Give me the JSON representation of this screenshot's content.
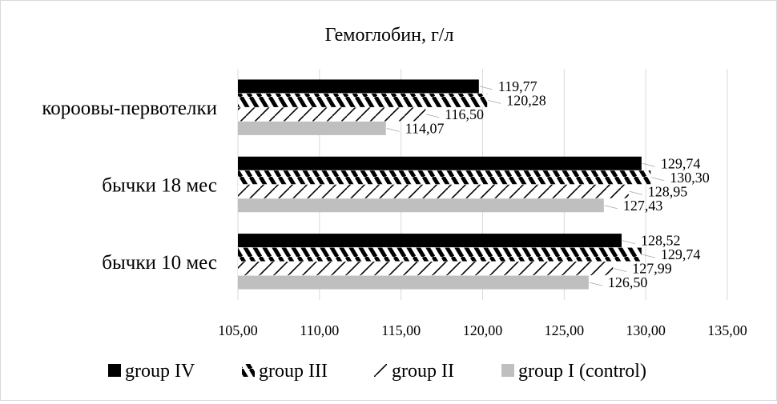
{
  "chart_data": {
    "type": "bar",
    "orientation": "horizontal",
    "title": "Гемоглобин, г/л",
    "categories": [
      "короовы-первотелки",
      "бычки 18 мес",
      "бычки 10 мес"
    ],
    "series": [
      {
        "name": "group IV",
        "values": [
          119.77,
          129.74,
          128.52
        ],
        "labels": [
          "119,77",
          "129,74",
          "128,52"
        ],
        "pattern": "solid-black"
      },
      {
        "name": "group III",
        "values": [
          120.28,
          130.3,
          129.74
        ],
        "labels": [
          "120,28",
          "130,30",
          "129,74"
        ],
        "pattern": "dense-diagonal"
      },
      {
        "name": "group II",
        "values": [
          116.5,
          128.95,
          127.99
        ],
        "labels": [
          "116,50",
          "128,95",
          "127,99"
        ],
        "pattern": "sparse-diagonal"
      },
      {
        "name": "group I (control)",
        "values": [
          114.07,
          127.43,
          126.5
        ],
        "labels": [
          "114,07",
          "127,43",
          "126,50"
        ],
        "pattern": "solid-gray"
      }
    ],
    "xlim": [
      105,
      135
    ],
    "xticks": [
      105,
      110,
      115,
      120,
      125,
      130,
      135
    ],
    "xtick_labels": [
      "105,00",
      "110,00",
      "115,00",
      "120,00",
      "125,00",
      "130,00",
      "135,00"
    ],
    "grid": "vertical",
    "legend_position": "bottom",
    "xlabel": "",
    "ylabel": ""
  },
  "colors": {
    "group_iv": "#000000",
    "group_iii": "#000000",
    "group_ii": "#000000",
    "group_i": "#bfbfbf",
    "grid": "#d9d9d9"
  }
}
